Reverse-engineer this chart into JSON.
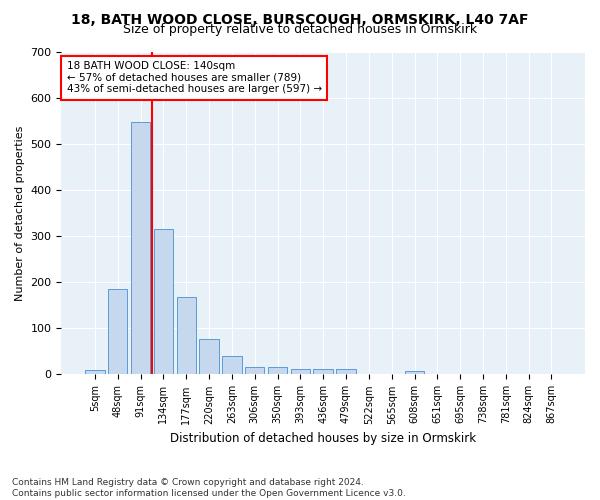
{
  "title1": "18, BATH WOOD CLOSE, BURSCOUGH, ORMSKIRK, L40 7AF",
  "title2": "Size of property relative to detached houses in Ormskirk",
  "xlabel": "Distribution of detached houses by size in Ormskirk",
  "ylabel": "Number of detached properties",
  "footnote": "Contains HM Land Registry data © Crown copyright and database right 2024.\nContains public sector information licensed under the Open Government Licence v3.0.",
  "bar_labels": [
    "5sqm",
    "48sqm",
    "91sqm",
    "134sqm",
    "177sqm",
    "220sqm",
    "263sqm",
    "306sqm",
    "350sqm",
    "393sqm",
    "436sqm",
    "479sqm",
    "522sqm",
    "565sqm",
    "608sqm",
    "651sqm",
    "695sqm",
    "738sqm",
    "781sqm",
    "824sqm",
    "867sqm"
  ],
  "bar_values": [
    10,
    185,
    548,
    315,
    168,
    77,
    40,
    17,
    17,
    12,
    12,
    12,
    0,
    0,
    8,
    0,
    0,
    0,
    0,
    0,
    0
  ],
  "bar_color": "#c5d8ed",
  "bar_edge_color": "#5b9bd5",
  "ylim": [
    0,
    700
  ],
  "yticks": [
    0,
    100,
    200,
    300,
    400,
    500,
    600,
    700
  ],
  "vline_x": 2.5,
  "vline_color": "red",
  "annotation_text": "18 BATH WOOD CLOSE: 140sqm\n← 57% of detached houses are smaller (789)\n43% of semi-detached houses are larger (597) →",
  "annotation_box_color": "red",
  "background_color": "#e8f0f8",
  "title1_fontsize": 10,
  "title2_fontsize": 9,
  "footnote_fontsize": 6.5
}
